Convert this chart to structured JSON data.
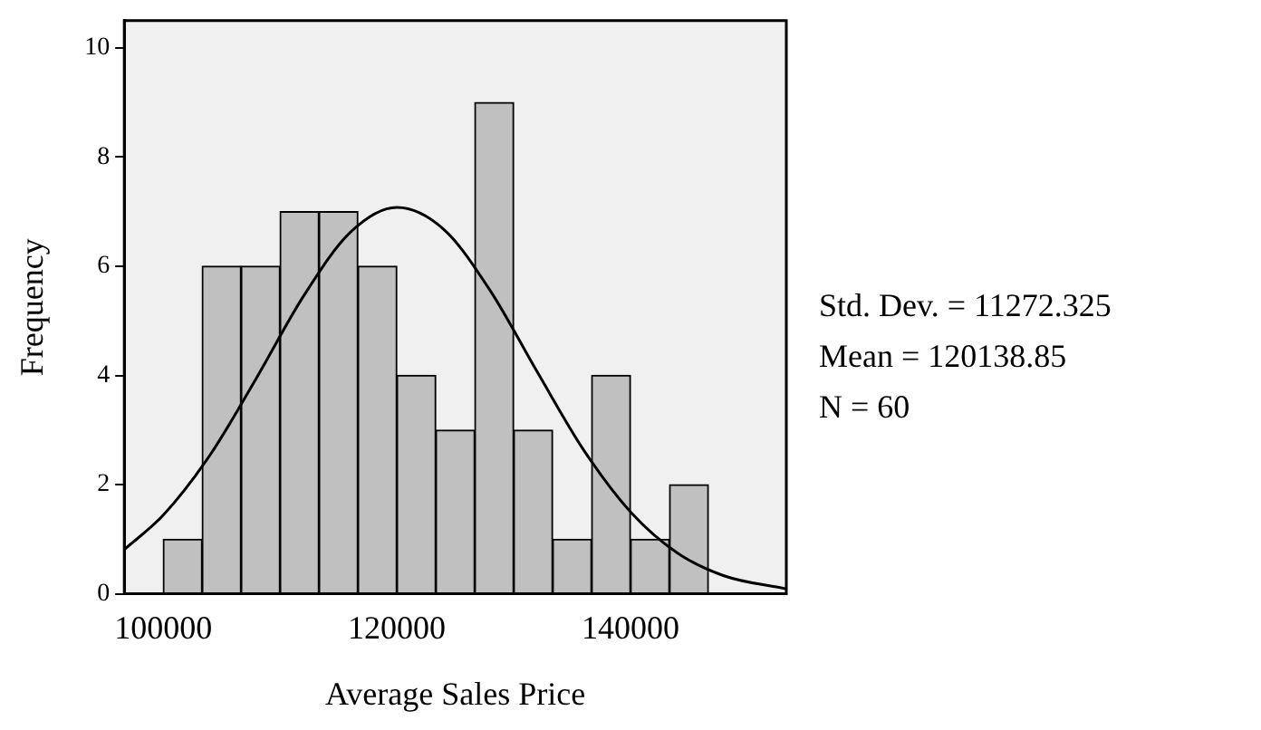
{
  "chart_data": {
    "type": "histogram",
    "xlabel": "Average Sales Price",
    "ylabel": "Frequency",
    "bins": [
      100000,
      103333,
      106667,
      110000,
      113333,
      116667,
      120000,
      123333,
      126667,
      130000,
      133333,
      136667,
      140000,
      143333,
      146667
    ],
    "series": [
      {
        "color": "#c0c0c0",
        "values": [
          1,
          6,
          6,
          7,
          7,
          6,
          4,
          3,
          9,
          3,
          1,
          4,
          1,
          2
        ]
      },
      {
        "type": "line",
        "color": "#000000",
        "x": [
          96667,
          100000,
          104000,
          108000,
          112000,
          116000,
          120000,
          124000,
          128000,
          132000,
          136000,
          140000,
          144000,
          148000,
          153333
        ],
        "values": [
          0.81,
          1.44,
          2.54,
          3.96,
          5.45,
          6.62,
          7.08,
          6.68,
          5.55,
          4.07,
          2.63,
          1.5,
          0.75,
          0.33,
          0.09
        ]
      }
    ],
    "xlim": [
      96667,
      153333
    ],
    "xticks": [
      100000,
      120000,
      140000
    ],
    "ylim": [
      0,
      10.5
    ],
    "yticks": [
      0,
      2,
      4,
      6,
      8,
      10
    ],
    "grid": false,
    "legend": false,
    "marker": "none",
    "annotations": [
      "Std. Dev. = 11272.325",
      "Mean = 120138.85",
      "N = 60"
    ]
  }
}
